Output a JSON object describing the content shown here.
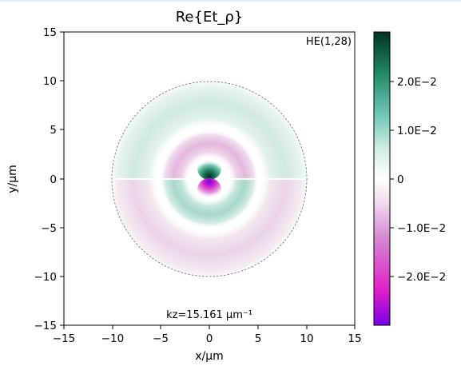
{
  "chart_data": {
    "type": "heatmap",
    "title": "Re{Et_ρ}",
    "xlabel": "x/μm",
    "ylabel": "y/μm",
    "xlim": [
      -15,
      15
    ],
    "ylim": [
      -15,
      15
    ],
    "xticks": [
      "−15",
      "−10",
      "−5",
      "0",
      "5",
      "10",
      "15"
    ],
    "yticks": [
      "15",
      "10",
      "5",
      "0",
      "−5",
      "−10",
      "−15"
    ],
    "mode_label": "HE(1,28)",
    "kz_label": "kz=15.161 μm⁻¹",
    "core_radius": 10,
    "colorbar": {
      "range": [
        -0.029,
        0.029
      ],
      "ticks": [
        {
          "value": 0.02,
          "label": "2.0E−2"
        },
        {
          "value": 0.01,
          "label": "1.0E−2"
        },
        {
          "value": 0,
          "label": "0"
        },
        {
          "value": -0.01,
          "label": "−1.0E−2"
        },
        {
          "value": -0.02,
          "label": "−2.0E−2"
        }
      ],
      "colormap": [
        "#7a00e6",
        "#e020c8",
        "#d48ad0",
        "#f2dcef",
        "#ffffff",
        "#d2ece6",
        "#6fc7b3",
        "#22876a",
        "#00331f"
      ]
    },
    "field_features": [
      {
        "feature": "upper-center-lobe",
        "r": [
          0,
          1.4
        ],
        "sign": "positive",
        "peak": 0.029
      },
      {
        "feature": "lower-center-lobe",
        "r": [
          0,
          1.4
        ],
        "sign": "negative",
        "peak": -0.029
      },
      {
        "feature": "ring-1",
        "r": [
          2.0,
          4.8
        ],
        "upper": "negative",
        "lower": "positive",
        "magnitude": 0.009
      },
      {
        "feature": "ring-2",
        "r": [
          5.5,
          10.0
        ],
        "upper": "positive",
        "lower": "negative",
        "magnitude": 0.007
      }
    ]
  }
}
